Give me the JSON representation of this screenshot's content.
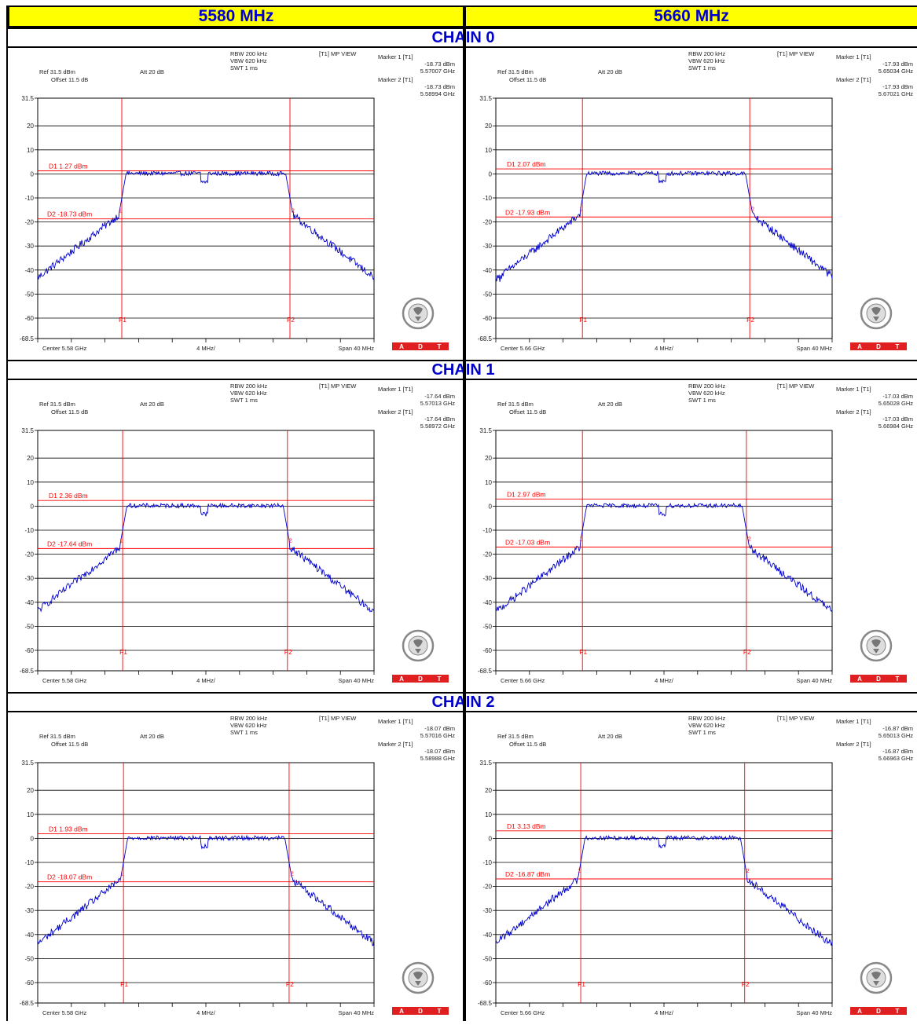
{
  "columns": [
    "5580 MHz",
    "5660 MHz"
  ],
  "chains": [
    "CHAIN 0",
    "CHAIN 1",
    "CHAIN 2"
  ],
  "logo": {
    "text_top": "BUREAU VERITAS",
    "year": "1828",
    "badge": [
      "A",
      "D",
      "T"
    ],
    "badge_color": "#e02020"
  },
  "colors": {
    "trace": "#0000cc",
    "marker": "#ff0000",
    "header_bg": "#ffff00",
    "header_text": "#0000cc"
  },
  "chart_data": [
    {
      "type": "line",
      "chain": "CHAIN 0",
      "freq": "5580 MHz",
      "rbw": "RBW 200 kHz",
      "vbw": "VBW 620 kHz",
      "swt": "SWT 1 ms",
      "view": "[T1] MP VIEW",
      "ref": "Ref 31.5 dBm",
      "att": "Att  20 dB",
      "offset": "Offset 11.5 dB",
      "center": "Center 5.58 GHz",
      "div": "4 MHz/",
      "span": "Span 40 MHz",
      "yticks": [
        "31.5",
        "20",
        "10",
        "0",
        "-10",
        "-20",
        "-30",
        "-40",
        "-50",
        "-60",
        "-68.5"
      ],
      "ylim": [
        -68.5,
        31.5
      ],
      "markers": [
        {
          "label": "Marker 1 [T1]",
          "level": "-18.73 dBm",
          "freq": "5.57007 GHz"
        },
        {
          "label": "Marker 2 [T1]",
          "level": "-18.73 dBm",
          "freq": "5.58994 GHz"
        }
      ],
      "d1": {
        "label": "D1 1.27 dBm",
        "value": 1.27
      },
      "d2": {
        "label": "D2 -18.73 dBm",
        "value": -18.73
      },
      "f1": -10.0,
      "f2": 10.0
    },
    {
      "type": "line",
      "chain": "CHAIN 0",
      "freq": "5660 MHz",
      "rbw": "RBW 200 kHz",
      "vbw": "VBW 620 kHz",
      "swt": "SWT 1 ms",
      "view": "[T1] MP VIEW",
      "ref": "Ref 31.5 dBm",
      "att": "Att  20 dB",
      "offset": "Offset 11.5 dB",
      "center": "Center 5.66 GHz",
      "div": "4 MHz/",
      "span": "Span 40 MHz",
      "yticks": [
        "31.5",
        "20",
        "10",
        "0",
        "-10",
        "-20",
        "-30",
        "-40",
        "-50",
        "-60",
        "-68.5"
      ],
      "ylim": [
        -68.5,
        31.5
      ],
      "markers": [
        {
          "label": "Marker 1 [T1]",
          "level": "-17.93 dBm",
          "freq": "5.65034 GHz"
        },
        {
          "label": "Marker 2 [T1]",
          "level": "-17.93 dBm",
          "freq": "5.67021 GHz"
        }
      ],
      "d1": {
        "label": "D1 2.07 dBm",
        "value": 2.07
      },
      "d2": {
        "label": "D2 -17.93 dBm",
        "value": -17.93
      },
      "f1": -9.7,
      "f2": 10.2
    },
    {
      "type": "line",
      "chain": "CHAIN 1",
      "freq": "5580 MHz",
      "rbw": "RBW 200 kHz",
      "vbw": "VBW 620 kHz",
      "swt": "SWT 1 ms",
      "view": "[T1] MP VIEW",
      "ref": "Ref 31.5 dBm",
      "att": "Att  20 dB",
      "offset": "Offset 11.5 dB",
      "center": "Center 5.58 GHz",
      "div": "4 MHz/",
      "span": "Span 40 MHz",
      "yticks": [
        "31.5",
        "20",
        "10",
        "0",
        "-10",
        "-20",
        "-30",
        "-40",
        "-50",
        "-60",
        "-68.5"
      ],
      "ylim": [
        -68.5,
        31.5
      ],
      "markers": [
        {
          "label": "Marker 1 [T1]",
          "level": "-17.64 dBm",
          "freq": "5.57013 GHz"
        },
        {
          "label": "Marker 2 [T1]",
          "level": "-17.64 dBm",
          "freq": "5.58972 GHz"
        }
      ],
      "d1": {
        "label": "D1 2.36 dBm",
        "value": 2.36
      },
      "d2": {
        "label": "D2 -17.64 dBm",
        "value": -17.64
      },
      "f1": -9.9,
      "f2": 9.7
    },
    {
      "type": "line",
      "chain": "CHAIN 1",
      "freq": "5660 MHz",
      "rbw": "RBW 200 kHz",
      "vbw": "VBW 620 kHz",
      "swt": "SWT 1 ms",
      "view": "[T1] MP VIEW",
      "ref": "Ref 31.5 dBm",
      "att": "Att  20 dB",
      "offset": "Offset 11.5 dB",
      "center": "Center 5.66 GHz",
      "div": "4 MHz/",
      "span": "Span 40 MHz",
      "yticks": [
        "31.5",
        "20",
        "10",
        "0",
        "-10",
        "-20",
        "-30",
        "-40",
        "-50",
        "-60",
        "-68.5"
      ],
      "ylim": [
        -68.5,
        31.5
      ],
      "markers": [
        {
          "label": "Marker 1 [T1]",
          "level": "-17.03 dBm",
          "freq": "5.65028 GHz"
        },
        {
          "label": "Marker 2 [T1]",
          "level": "-17.03 dBm",
          "freq": "5.66984 GHz"
        }
      ],
      "d1": {
        "label": "D1 2.97 dBm",
        "value": 2.97
      },
      "d2": {
        "label": "D2 -17.03 dBm",
        "value": -17.03
      },
      "f1": -9.7,
      "f2": 9.8
    },
    {
      "type": "line",
      "chain": "CHAIN 2",
      "freq": "5580 MHz",
      "rbw": "RBW 200 kHz",
      "vbw": "VBW 620 kHz",
      "swt": "SWT 1 ms",
      "view": "[T1] MP VIEW",
      "ref": "Ref 31.5 dBm",
      "att": "Att  20 dB",
      "offset": "Offset 11.5 dB",
      "center": "Center 5.58 GHz",
      "div": "4 MHz/",
      "span": "Span 40 MHz",
      "yticks": [
        "31.5",
        "20",
        "10",
        "0",
        "-10",
        "-20",
        "-30",
        "-40",
        "-50",
        "-60",
        "-68.5"
      ],
      "ylim": [
        -68.5,
        31.5
      ],
      "markers": [
        {
          "label": "Marker 1 [T1]",
          "level": "-18.07 dBm",
          "freq": "5.57016 GHz"
        },
        {
          "label": "Marker 2 [T1]",
          "level": "-18.07 dBm",
          "freq": "5.58988 GHz"
        }
      ],
      "d1": {
        "label": "D1 1.93 dBm",
        "value": 1.93
      },
      "d2": {
        "label": "D2 -18.07 dBm",
        "value": -18.07
      },
      "f1": -9.8,
      "f2": 9.9
    },
    {
      "type": "line",
      "chain": "CHAIN 2",
      "freq": "5660 MHz",
      "rbw": "RBW 200 kHz",
      "vbw": "VBW 620 kHz",
      "swt": "SWT 1 ms",
      "view": "[T1] MP VIEW",
      "ref": "Ref 31.5 dBm",
      "att": "Att  20 dB",
      "offset": "Offset 11.5 dB",
      "center": "Center 5.66 GHz",
      "div": "4 MHz/",
      "span": "Span 40 MHz",
      "yticks": [
        "31.5",
        "20",
        "10",
        "0",
        "-10",
        "-20",
        "-30",
        "-40",
        "-50",
        "-60",
        "-68.5"
      ],
      "ylim": [
        -68.5,
        31.5
      ],
      "markers": [
        {
          "label": "Marker 1 [T1]",
          "level": "-16.87 dBm",
          "freq": "5.65013 GHz"
        },
        {
          "label": "Marker 2 [T1]",
          "level": "-16.87 dBm",
          "freq": "5.66963 GHz"
        }
      ],
      "d1": {
        "label": "D1 3.13 dBm",
        "value": 3.13
      },
      "d2": {
        "label": "D2 -16.87 dBm",
        "value": -16.87
      },
      "f1": -9.9,
      "f2": 9.6
    }
  ]
}
